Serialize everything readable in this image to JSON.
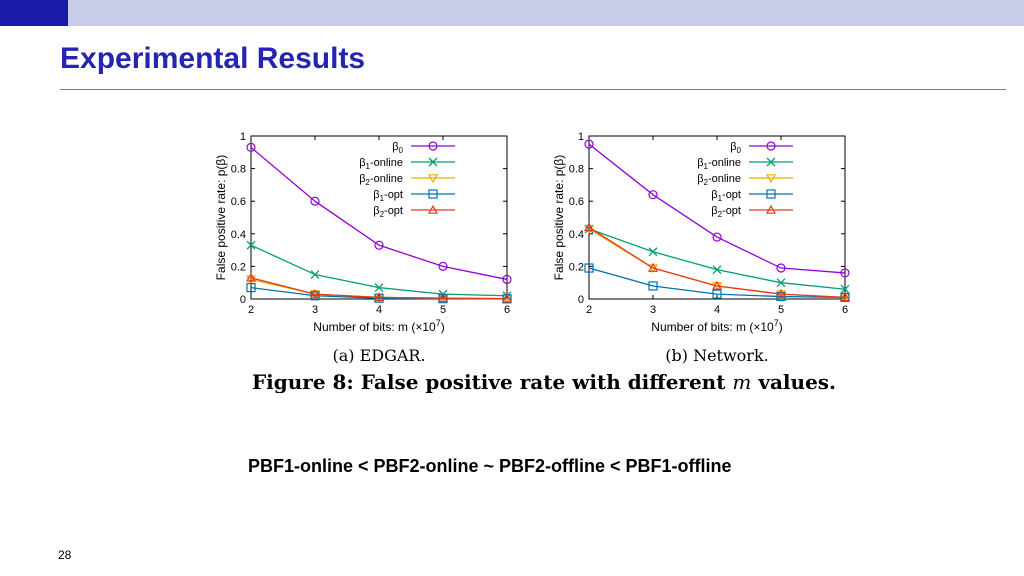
{
  "slide": {
    "title": "Experimental Results",
    "statement": "PBF1-online < PBF2-online ~ PBF2-offline < PBF1-offline",
    "page_number": "28"
  },
  "colors": {
    "topbar": "#c9cce9",
    "topbar_accent": "#1a1aa8",
    "title": "#2525b0",
    "beta0": "#9400d3",
    "beta1_online": "#009e73",
    "beta2_online": "#e6b000",
    "beta1_opt": "#0072b2",
    "beta2_opt": "#e53a1a"
  },
  "figure": {
    "caption_prefix": "Figure 8:",
    "caption_text": "False positive rate with different ",
    "caption_var": "m",
    "caption_suffix": " values."
  },
  "chart_data": [
    {
      "type": "line",
      "subcaption_label": "(a)",
      "subcaption": "EDGAR.",
      "xlabel": "Number of bits: m (×10",
      "xlabel_exp": "7",
      "ylabel": "False positive rate: p(β)",
      "x": [
        2,
        3,
        4,
        5,
        6
      ],
      "xlim": [
        2,
        6
      ],
      "ylim": [
        0,
        1
      ],
      "xticks": [
        "2",
        "3",
        "4",
        "5",
        "6"
      ],
      "yticks": [
        "0",
        "0.2",
        "0.4",
        "0.6",
        "0.8",
        "1"
      ],
      "legend_position": "top-right",
      "series": [
        {
          "name": "β0",
          "marker": "circle",
          "color_key": "beta0",
          "values": [
            0.93,
            0.6,
            0.33,
            0.2,
            0.12
          ]
        },
        {
          "name": "β1-online",
          "marker": "x",
          "color_key": "beta1_online",
          "values": [
            0.33,
            0.15,
            0.07,
            0.03,
            0.02
          ]
        },
        {
          "name": "β2-online",
          "marker": "triangle-down",
          "color_key": "beta2_online",
          "values": [
            0.12,
            0.03,
            0.01,
            0.005,
            0.002
          ]
        },
        {
          "name": "β1-opt",
          "marker": "square",
          "color_key": "beta1_opt",
          "values": [
            0.07,
            0.02,
            0.005,
            0.002,
            0.001
          ]
        },
        {
          "name": "β2-opt",
          "marker": "triangle-up",
          "color_key": "beta2_opt",
          "values": [
            0.13,
            0.03,
            0.01,
            0.005,
            0.002
          ]
        }
      ]
    },
    {
      "type": "line",
      "subcaption_label": "(b)",
      "subcaption": "Network.",
      "xlabel": "Number of bits: m (×10",
      "xlabel_exp": "7",
      "ylabel": "False positive rate: p(β)",
      "x": [
        2,
        3,
        4,
        5,
        6
      ],
      "xlim": [
        2,
        6
      ],
      "ylim": [
        0,
        1
      ],
      "xticks": [
        "2",
        "3",
        "4",
        "5",
        "6"
      ],
      "yticks": [
        "0",
        "0.2",
        "0.4",
        "0.6",
        "0.8",
        "1"
      ],
      "legend_position": "top-right",
      "series": [
        {
          "name": "β0",
          "marker": "circle",
          "color_key": "beta0",
          "values": [
            0.95,
            0.64,
            0.38,
            0.19,
            0.16
          ]
        },
        {
          "name": "β1-online",
          "marker": "x",
          "color_key": "beta1_online",
          "values": [
            0.43,
            0.29,
            0.18,
            0.1,
            0.06
          ]
        },
        {
          "name": "β2-online",
          "marker": "triangle-down",
          "color_key": "beta2_online",
          "values": [
            0.43,
            0.19,
            0.08,
            0.03,
            0.01
          ]
        },
        {
          "name": "β1-opt",
          "marker": "square",
          "color_key": "beta1_opt",
          "values": [
            0.19,
            0.08,
            0.03,
            0.015,
            0.01
          ]
        },
        {
          "name": "β2-opt",
          "marker": "triangle-up",
          "color_key": "beta2_opt",
          "values": [
            0.44,
            0.19,
            0.08,
            0.03,
            0.01
          ]
        }
      ]
    }
  ]
}
